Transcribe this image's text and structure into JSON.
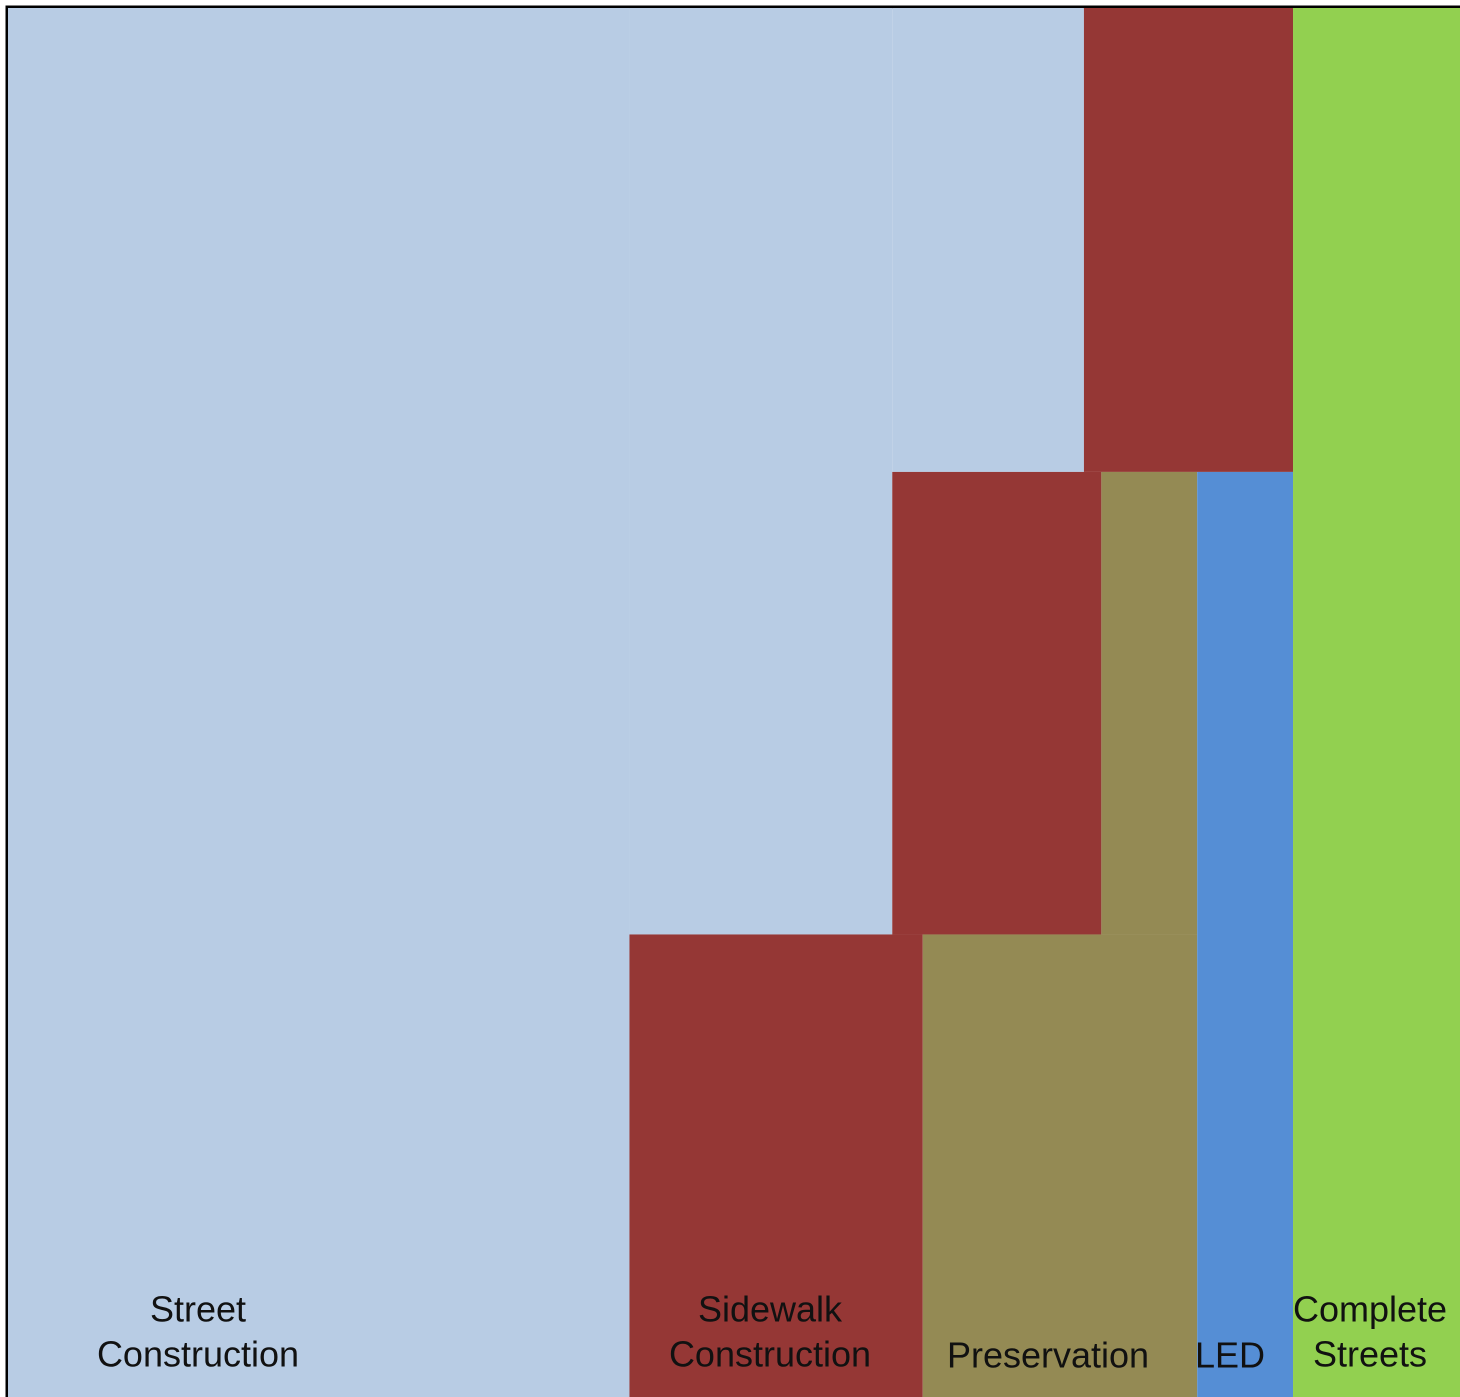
{
  "chart_data": {
    "type": "area",
    "grid": false,
    "legend": "none",
    "x_range": [
      0,
      1
    ],
    "y_range": [
      0,
      1
    ],
    "series": [
      {
        "label_lines": [
          "Street",
          "Construction"
        ],
        "color": "#b8cce4",
        "x_extent": [
          0,
          0.741
        ],
        "y_extent": [
          0,
          1
        ],
        "steps": [
          {
            "x_from": 0,
            "x_to": 0.428,
            "y_top": 1
          },
          {
            "x_from": 0.428,
            "x_to": 0.609,
            "y_top": 1
          },
          {
            "x_from": 0.609,
            "x_to": 0.741,
            "y_top": 1
          }
        ],
        "y_bottom_steps": [
          {
            "x_from": 0,
            "x_to": 0.428,
            "y_bottom": 0
          },
          {
            "x_from": 0.428,
            "x_to": 0.609,
            "y_bottom": 0.333
          },
          {
            "x_from": 0.609,
            "x_to": 0.741,
            "y_bottom": 0.666
          }
        ]
      },
      {
        "label_lines": [
          "Sidewalk",
          "Construction"
        ],
        "color": "#953735",
        "steps": [
          {
            "x_from": 0.428,
            "x_to": 0.63,
            "y_bottom": 0,
            "y_top": 0.333
          },
          {
            "x_from": 0.609,
            "x_to": 0.753,
            "y_bottom": 0.333,
            "y_top": 0.666
          },
          {
            "x_from": 0.741,
            "x_to": 0.885,
            "y_bottom": 0.666,
            "y_top": 1
          }
        ]
      },
      {
        "label_lines": [
          "Preservation"
        ],
        "color": "#948a54",
        "steps": [
          {
            "x_from": 0.63,
            "x_to": 0.819,
            "y_bottom": 0,
            "y_top": 0.333
          },
          {
            "x_from": 0.753,
            "x_to": 0.819,
            "y_bottom": 0.333,
            "y_top": 0.666
          }
        ]
      },
      {
        "label_lines": [
          "LED"
        ],
        "color": "#558ed5",
        "steps": [
          {
            "x_from": 0.819,
            "x_to": 0.885,
            "y_bottom": 0,
            "y_top": 0.666
          }
        ]
      },
      {
        "label_lines": [
          "Complete",
          "Streets"
        ],
        "color": "#92d050",
        "steps": [
          {
            "x_from": 0.885,
            "x_to": 1.0,
            "y_bottom": 0,
            "y_top": 1
          }
        ]
      }
    ]
  }
}
